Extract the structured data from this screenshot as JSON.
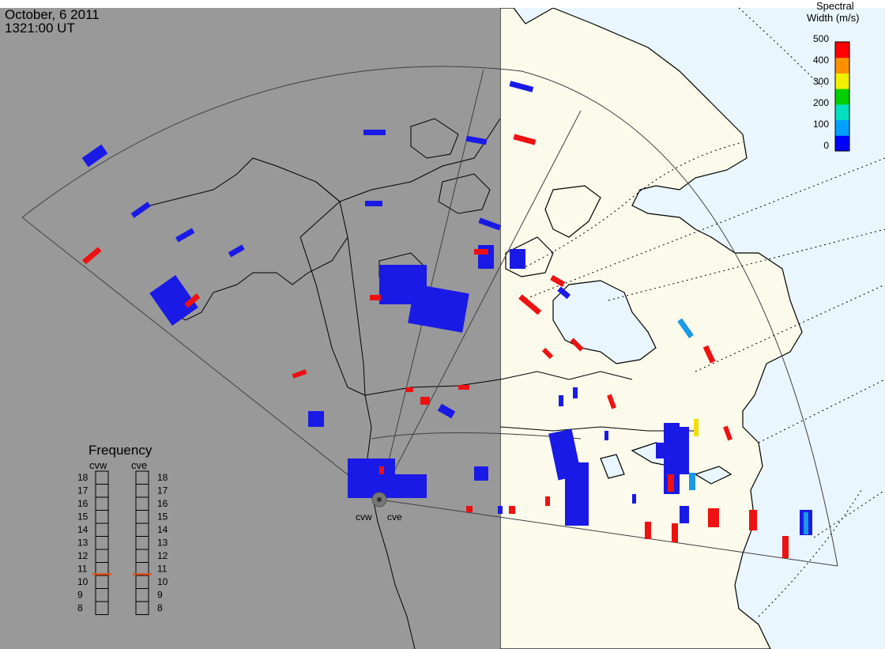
{
  "header": {
    "date": "October, 6 2011",
    "time": "1321:00 UT"
  },
  "colorbar": {
    "title_line1": "Spectral",
    "title_line2": "Width (m/s)",
    "ticks": [
      "500",
      "400",
      "300",
      "200",
      "100",
      "0"
    ],
    "colors": [
      "#0000ff",
      "#00a0ff",
      "#00e0c0",
      "#00d000",
      "#f0f000",
      "#ff9000",
      "#ff0000"
    ]
  },
  "frequency": {
    "title": "Frequency",
    "radars": [
      "cvw",
      "cve"
    ],
    "levels": [
      "18",
      "17",
      "16",
      "15",
      "14",
      "13",
      "12",
      "11",
      "10",
      "9",
      "8"
    ],
    "active_mhz": [
      10.6,
      10.6
    ]
  },
  "sites": {
    "west": "cvw",
    "east": "cve"
  },
  "palette": {
    "night": "#999999",
    "land_day": "#fbfaeb",
    "water_day": "#eaf6fd",
    "echo_blue": "#1a1ae6",
    "echo_red": "#ee1111",
    "echo_cyan": "#1a9ae6",
    "echo_yellow": "#f0e000"
  }
}
